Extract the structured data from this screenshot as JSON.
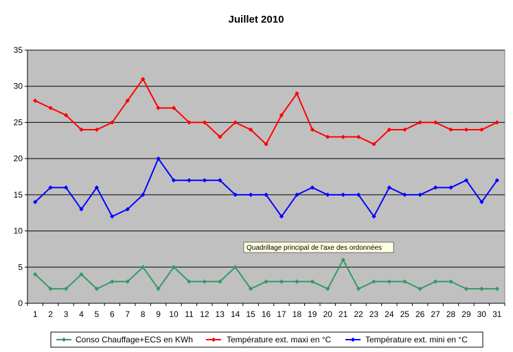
{
  "chart_data": {
    "type": "line",
    "title": "Juillet 2010",
    "xlabel": "",
    "ylabel": "",
    "x": [
      1,
      2,
      3,
      4,
      5,
      6,
      7,
      8,
      9,
      10,
      11,
      12,
      13,
      14,
      15,
      16,
      17,
      18,
      19,
      20,
      21,
      22,
      23,
      24,
      25,
      26,
      27,
      28,
      29,
      30,
      31
    ],
    "ylim": [
      0,
      35
    ],
    "yticks": [
      0,
      5,
      10,
      15,
      20,
      25,
      30,
      35
    ],
    "grid": "horizontal",
    "plot_background": "#c0c0c0",
    "legend_position": "bottom",
    "series": [
      {
        "name": "Conso Chauffage+ECS en KWh",
        "color": "#339966",
        "values": [
          4,
          2,
          2,
          4,
          2,
          3,
          3,
          5,
          2,
          5,
          3,
          3,
          3,
          5,
          2,
          3,
          3,
          3,
          3,
          2,
          6,
          2,
          3,
          3,
          3,
          2,
          3,
          3,
          2,
          2,
          2
        ]
      },
      {
        "name": "Température ext. maxi en °C",
        "color": "#ff0000",
        "values": [
          28,
          27,
          26,
          24,
          24,
          25,
          28,
          31,
          27,
          27,
          25,
          25,
          23,
          25,
          24,
          22,
          26,
          29,
          24,
          23,
          23,
          23,
          22,
          24,
          24,
          25,
          25,
          24,
          24,
          24,
          25
        ]
      },
      {
        "name": "Température ext. mini en °C",
        "color": "#0000ff",
        "values": [
          14,
          16,
          16,
          13,
          16,
          12,
          13,
          15,
          20,
          17,
          17,
          17,
          17,
          15,
          15,
          15,
          12,
          15,
          16,
          15,
          15,
          15,
          12,
          16,
          15,
          15,
          16,
          16,
          17,
          14,
          17
        ]
      }
    ],
    "tooltip": "Quadrillage principal de l'axe des ordonnées"
  }
}
